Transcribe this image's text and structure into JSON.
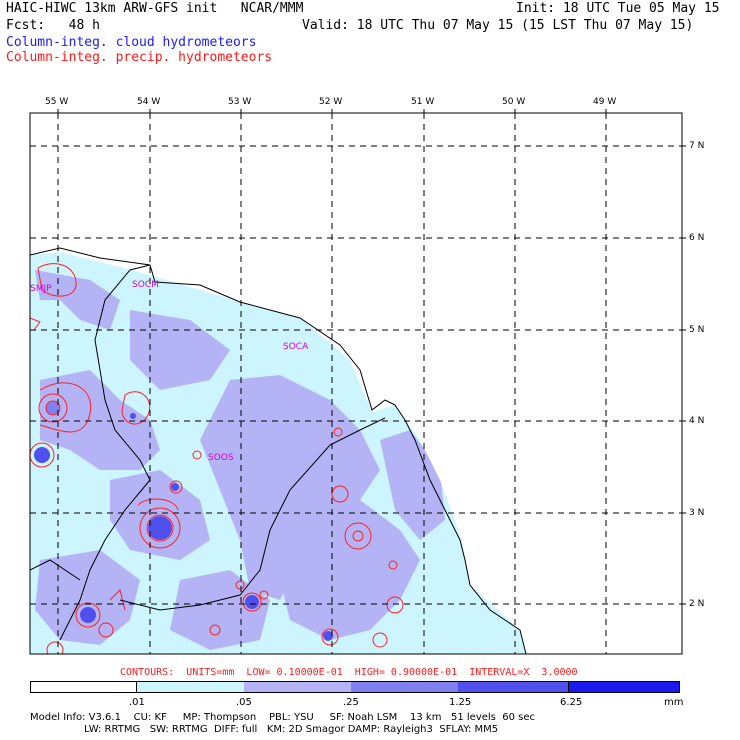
{
  "header": {
    "line1_left": "HAIC-HIWC 13km ARW-GFS init   NCAR/MMM",
    "line1_right": "Init: 18 UTC Tue 05 May 15",
    "line2_left": "Fcst:   48 h",
    "line2_right": "Valid: 18 UTC Thu 07 May 15 (15 LST Thu 07 May 15)",
    "legend_cloud": "Column-integ. cloud hydrometeors",
    "legend_precip": "Column-integ. precip. hydrometeors"
  },
  "map": {
    "lon_labels": [
      "55 W",
      "54 W",
      "53 W",
      "52 W",
      "51 W",
      "50 W",
      "49 W"
    ],
    "lat_labels": [
      "7 N",
      "6 N",
      "5 N",
      "4 N",
      "3 N",
      "2 N"
    ],
    "stations": [
      "SMJP",
      "SOCM",
      "SOCA",
      "SOOS"
    ]
  },
  "contours_caption": "CONTOURS:  UNITS=mm  LOW= 0.10000E-01  HIGH= 0.90000E-01  INTERVAL=X  3.0000",
  "colorbar": {
    "ticks": [
      ".01",
      ".05",
      ".25",
      "1.25",
      "6.25"
    ],
    "unit": "mm",
    "colors": [
      "#ffffff",
      "#ccf5ff",
      "#b3b3f5",
      "#7f7ff0",
      "#5050ee",
      "#1a1aee"
    ]
  },
  "footer": {
    "line1": "Model Info: V3.6.1    CU: KF     MP: Thompson    PBL: YSU     SF: Noah LSM    13 km   51 levels  60 sec",
    "line2": "                 LW: RRTMG   SW: RRTMG  DIFF: full   KM: 2D Smagor DAMP: Rayleigh3  SFLAY: MM5"
  }
}
